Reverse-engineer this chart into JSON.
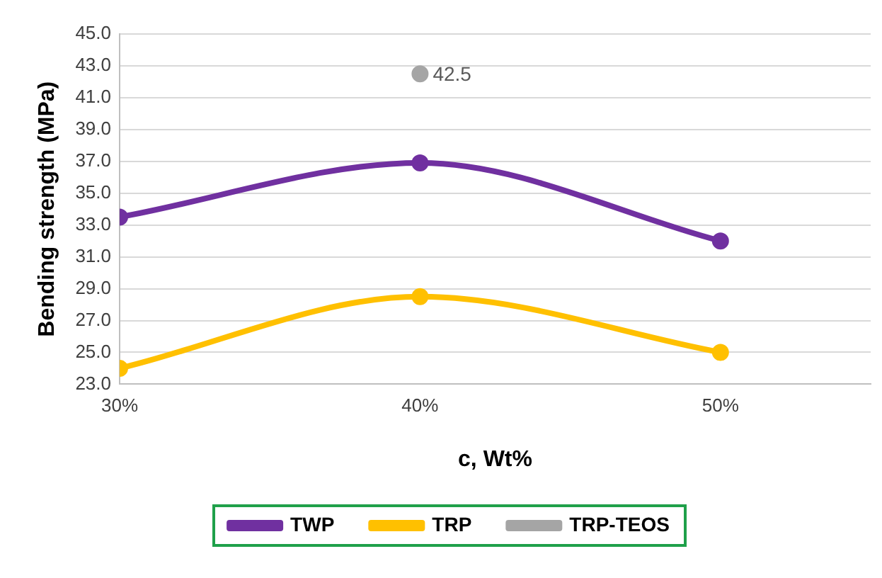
{
  "chart_data": {
    "type": "line",
    "xlabel": "c, Wt%",
    "ylabel": "Bending strength (MPa)",
    "x": [
      30,
      40,
      50
    ],
    "xlim": [
      30,
      55
    ],
    "xticks": [
      {
        "value": 30,
        "label": "30%"
      },
      {
        "value": 40,
        "label": "40%"
      },
      {
        "value": 50,
        "label": "50%"
      }
    ],
    "ylim": [
      23,
      45
    ],
    "yticks": [
      {
        "value": 23,
        "label": "23.0"
      },
      {
        "value": 25,
        "label": "25.0"
      },
      {
        "value": 27,
        "label": "27.0"
      },
      {
        "value": 29,
        "label": "29.0"
      },
      {
        "value": 31,
        "label": "31.0"
      },
      {
        "value": 33,
        "label": "33.0"
      },
      {
        "value": 35,
        "label": "35.0"
      },
      {
        "value": 37,
        "label": "37.0"
      },
      {
        "value": 39,
        "label": "39.0"
      },
      {
        "value": 41,
        "label": "41.0"
      },
      {
        "value": 43,
        "label": "43.0"
      },
      {
        "value": 45,
        "label": "45.0"
      }
    ],
    "series": [
      {
        "name": "TWP",
        "color": "#7030a0",
        "values": [
          33.5,
          36.9,
          32.0
        ]
      },
      {
        "name": "TRP",
        "color": "#ffc000",
        "values": [
          24.0,
          28.5,
          25.0
        ]
      },
      {
        "name": "TRP-TEOS",
        "color": "#a5a5a5",
        "values": [
          null,
          42.5,
          null
        ],
        "value_labels": [
          null,
          "42.5",
          null
        ]
      }
    ],
    "grid": "y",
    "legend": "bottom",
    "marker": "circle",
    "line_style": "solid"
  }
}
